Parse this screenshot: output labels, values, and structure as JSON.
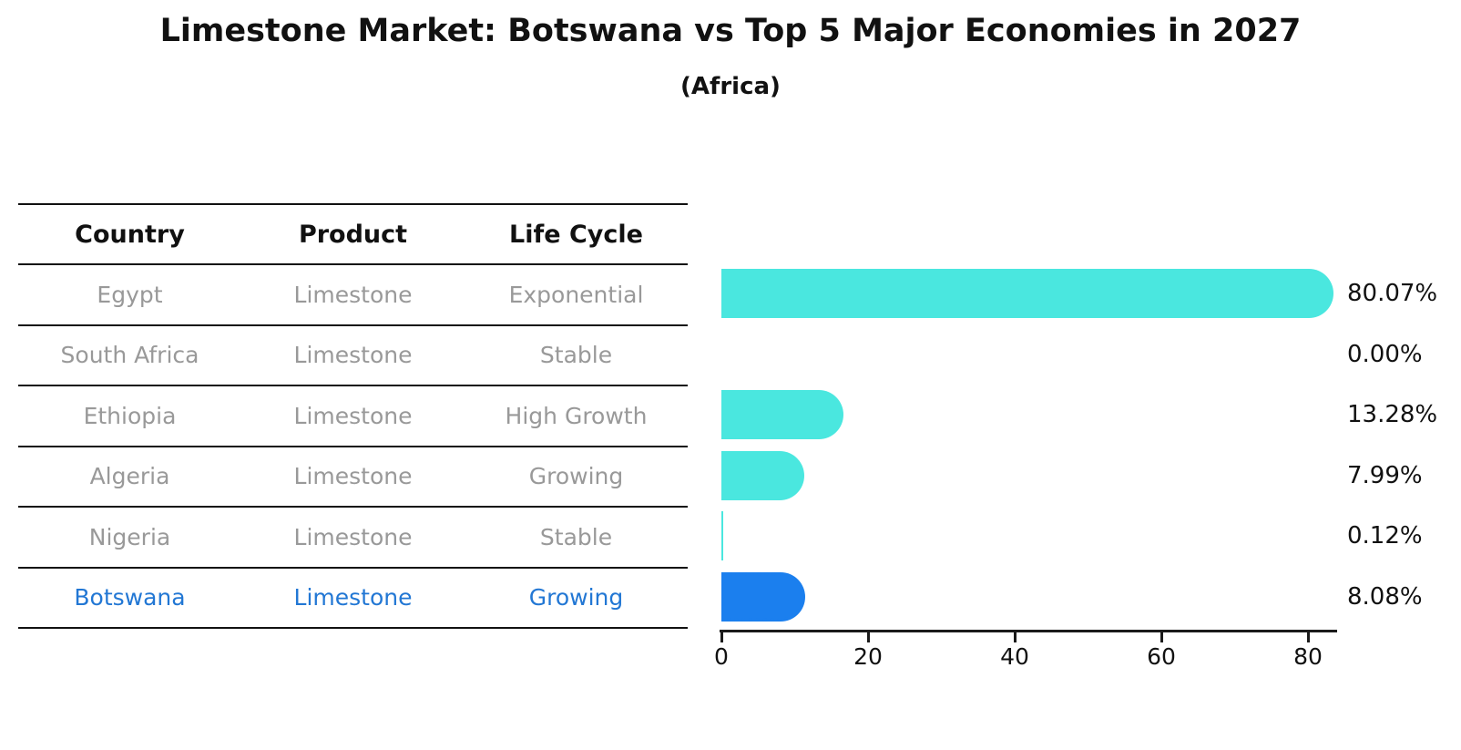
{
  "title": "Limestone Market: Botswana vs Top 5 Major Economies in 2027",
  "subtitle": "(Africa)",
  "table": {
    "headers": [
      "Country",
      "Product",
      "Life Cycle"
    ],
    "rows": [
      {
        "country": "Egypt",
        "product": "Limestone",
        "life_cycle": "Exponential",
        "highlight": false
      },
      {
        "country": "South Africa",
        "product": "Limestone",
        "life_cycle": "Stable",
        "highlight": false
      },
      {
        "country": "Ethiopia",
        "product": "Limestone",
        "life_cycle": "High Growth",
        "highlight": false
      },
      {
        "country": "Algeria",
        "product": "Limestone",
        "life_cycle": "Growing",
        "highlight": false
      },
      {
        "country": "Nigeria",
        "product": "Limestone",
        "life_cycle": "Stable",
        "highlight": false
      },
      {
        "country": "Botswana",
        "product": "Limestone",
        "life_cycle": "Growing",
        "highlight": true
      }
    ]
  },
  "chart_data": {
    "type": "bar",
    "orientation": "horizontal",
    "title": "Limestone Market: Botswana vs Top 5 Major Economies in 2027",
    "subtitle": "(Africa)",
    "categories": [
      "Egypt",
      "South Africa",
      "Ethiopia",
      "Algeria",
      "Nigeria",
      "Botswana"
    ],
    "values": [
      80.07,
      0.0,
      13.28,
      7.99,
      0.12,
      8.08
    ],
    "value_labels": [
      "80.07%",
      "0.00%",
      "13.28%",
      "7.99%",
      "0.12%",
      "8.08%"
    ],
    "xlabel": "",
    "ylabel": "",
    "xticks": [
      0,
      20,
      40,
      60,
      80
    ],
    "xlim": [
      0,
      84
    ],
    "grid": false,
    "legend": false,
    "bar_color": "#4AE7DF",
    "highlight_color": "#1B7FEE",
    "highlight_index": 5,
    "highlight_text_color": "#2277D4"
  }
}
